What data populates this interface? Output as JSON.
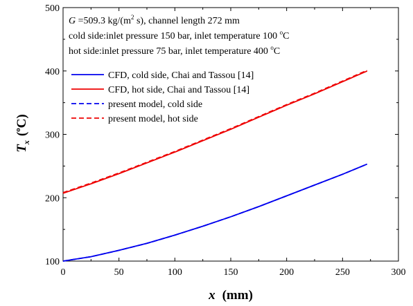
{
  "chart_data": {
    "type": "line",
    "xlabel": {
      "var": "x",
      "unit": "(mm)"
    },
    "ylabel": {
      "var": "T",
      "sub": "x",
      "unit_open": "(",
      "unit_sup": "o",
      "unit_rest": "C)"
    },
    "xlim": [
      0,
      300
    ],
    "ylim": [
      100,
      500
    ],
    "x_ticks": [
      0,
      50,
      100,
      150,
      200,
      250,
      300
    ],
    "y_ticks": [
      100,
      200,
      300,
      400,
      500
    ],
    "annotations": {
      "line1_var": "G",
      "line1_mid": " =509.3 kg/(m",
      "line1_sup": "2",
      "line1_rest": " s), channel length 272 mm",
      "line2_main": "cold side:inlet pressure 150 bar, inlet temperature 100 ",
      "line2_sup": "o",
      "line2_end": "C",
      "line3_main": "hot side:inlet pressure 75 bar, inlet temperature 400 ",
      "line3_sup": "o",
      "line3_end": "C"
    },
    "legend_position": "upper-left",
    "series": [
      {
        "name": "CFD, cold side, Chai and Tassou [14]",
        "color": "#0000ee",
        "dash": "solid",
        "x": [
          0,
          25,
          50,
          75,
          100,
          125,
          150,
          175,
          200,
          225,
          250,
          272
        ],
        "y": [
          100,
          107,
          117,
          128,
          141,
          155,
          170,
          186,
          203,
          220,
          237,
          253
        ]
      },
      {
        "name": "CFD, hot side, Chai and Tassou [14]",
        "color": "#ee0000",
        "dash": "solid",
        "x": [
          0,
          25,
          50,
          75,
          100,
          125,
          150,
          175,
          200,
          225,
          250,
          272
        ],
        "y": [
          207,
          222,
          238,
          255,
          272,
          290,
          308,
          327,
          346,
          364,
          383,
          400
        ]
      },
      {
        "name": "present model, cold side",
        "color": "#0000ee",
        "dash": "dashed",
        "x": [
          0,
          25,
          50,
          75,
          100,
          125,
          150,
          175,
          200,
          225,
          250,
          272
        ],
        "y": [
          100,
          107,
          117,
          128,
          141,
          155,
          170,
          186,
          203,
          220,
          237,
          253
        ]
      },
      {
        "name": "present model, hot side",
        "color": "#ee0000",
        "dash": "dashed",
        "x": [
          0,
          25,
          50,
          75,
          100,
          125,
          150,
          175,
          200,
          225,
          250,
          272
        ],
        "y": [
          208,
          223,
          239,
          256,
          273,
          291,
          309,
          328,
          347,
          365,
          384,
          401
        ]
      }
    ]
  }
}
